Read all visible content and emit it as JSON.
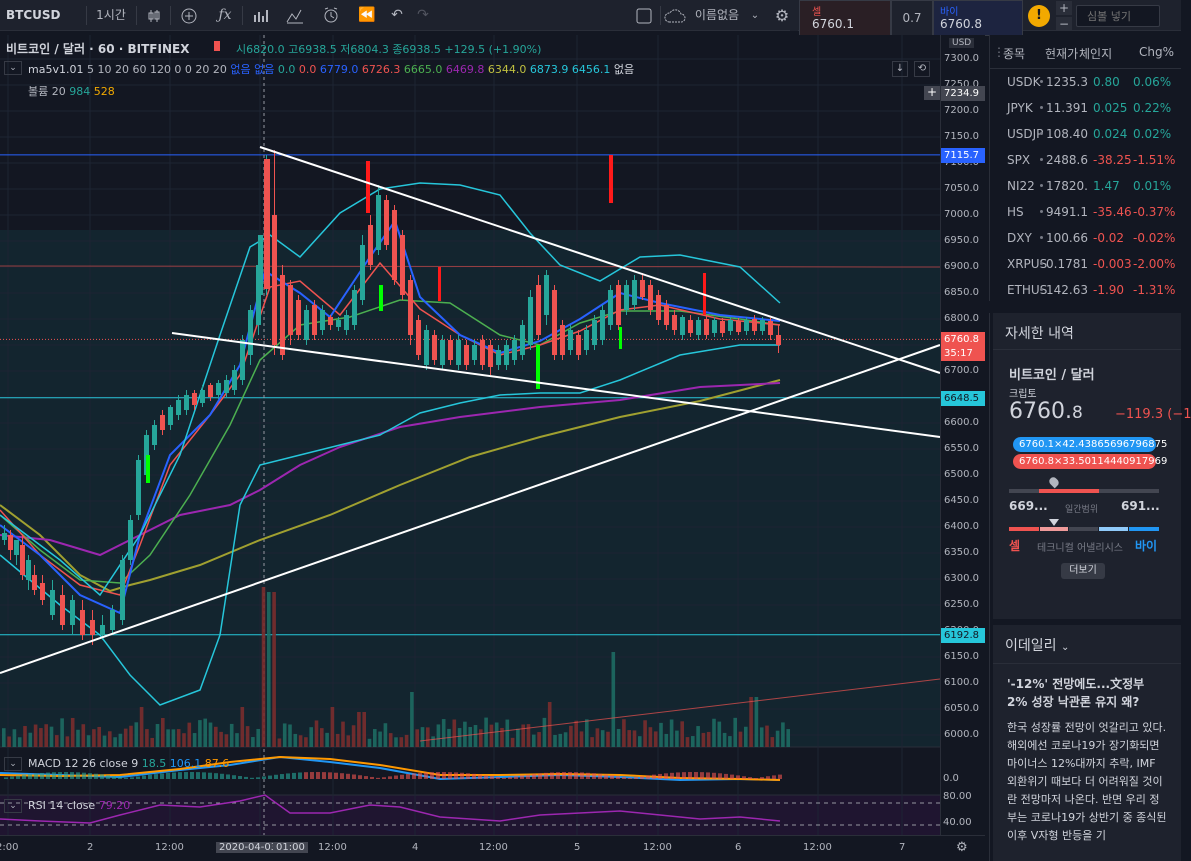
{
  "toolbar": {
    "symbol": "BTCUSD",
    "interval": "1시간",
    "layout_name": "이름없음",
    "sell_label": "셀",
    "sell_price": "6760.1",
    "spread": "0.7",
    "buy_label": "바이",
    "buy_price": "6760.8",
    "symbol_search_placeholder": "심볼 넣기"
  },
  "legend": {
    "title": "비트코인 / 달러 · 60 · BITFINEX",
    "ohlc": "시6820.0 고6938.5 저6804.3 종6938.5 +129.5 (+1.90%)",
    "ma_name": "ma5v1.01",
    "ma_params": "5 10 20 60 120 0 0 20 20",
    "ma_none1": "없음",
    "ma_none2": "없음",
    "ma_values": [
      {
        "text": "0.0",
        "color": "#26a69a"
      },
      {
        "text": "0.0",
        "color": "#ef5350"
      },
      {
        "text": "6779.0",
        "color": "#2962ff"
      },
      {
        "text": "6726.3",
        "color": "#ef5350"
      },
      {
        "text": "6665.0",
        "color": "#4caf50"
      },
      {
        "text": "6469.8",
        "color": "#9c27b0"
      },
      {
        "text": "6344.0",
        "color": "#c0c040"
      },
      {
        "text": "6873.9",
        "color": "#26c6da"
      },
      {
        "text": "6456.1",
        "color": "#26c6da"
      }
    ],
    "ma_tail": "없음",
    "volume_name": "볼륨 20",
    "volume_val1": "984",
    "volume_val2": "528"
  },
  "price_axis": {
    "currency": "USD",
    "ticks": [
      "7300.0",
      "7250.0",
      "7200.0",
      "7150.0",
      "7100.0",
      "7050.0",
      "7000.0",
      "6950.0",
      "6900.0",
      "6850.0",
      "6800.0",
      "6750.0",
      "6700.0",
      "6650.0",
      "6600.0",
      "6550.0",
      "6500.0",
      "6450.0",
      "6400.0",
      "6350.0",
      "6300.0",
      "6250.0",
      "6200.0",
      "6150.0",
      "6100.0",
      "6050.0",
      "6000.0"
    ],
    "tags": [
      {
        "text": "7234.9",
        "bg": "#434651"
      },
      {
        "text": "7115.7",
        "bg": "#2962ff"
      },
      {
        "text": "6760.8",
        "bg": "#ef5350"
      },
      {
        "text": "35:17",
        "bg": "#ef5350"
      },
      {
        "text": "6648.5",
        "bg": "#26c6da"
      },
      {
        "text": "6192.8",
        "bg": "#26c6da"
      }
    ]
  },
  "macd": {
    "label": "MACD 12 26 close 9",
    "v1": "18.5",
    "v2": "106.1",
    "v3": "87.6",
    "tick": "0.0"
  },
  "rsi": {
    "label": "RSI 14 close",
    "value": "79.20",
    "ticks": [
      "80.00",
      "40.00"
    ]
  },
  "time_axis": {
    "labels": [
      "2:00",
      "2",
      "12:00",
      "2020-04-03",
      "01:00",
      "12:00",
      "4",
      "12:00",
      "5",
      "12:00",
      "6",
      "12:00",
      "7"
    ]
  },
  "watchlist": {
    "headers": [
      "종목",
      "현재가",
      "체인지",
      "Chg%"
    ],
    "rows": [
      {
        "sym": "USDK",
        "price": "1235.3",
        "chg": "0.80",
        "pct": "0.06%",
        "dir": "pos"
      },
      {
        "sym": "JPYK",
        "price": "11.391",
        "chg": "0.025",
        "pct": "0.22%",
        "dir": "pos"
      },
      {
        "sym": "USDJP",
        "price": "108.40",
        "chg": "0.024",
        "pct": "0.02%",
        "dir": "pos"
      },
      {
        "sym": "SPX",
        "price": "2488.6",
        "chg": "-38.25",
        "pct": "-1.51%",
        "dir": "neg"
      },
      {
        "sym": "NI22",
        "price": "17820.",
        "chg": "1.47",
        "pct": "0.01%",
        "dir": "pos"
      },
      {
        "sym": "HS",
        "price": "9491.1",
        "chg": "-35.46",
        "pct": "-0.37%",
        "dir": "neg"
      },
      {
        "sym": "DXY",
        "price": "100.66",
        "chg": "-0.02",
        "pct": "-0.02%",
        "dir": "neg"
      },
      {
        "sym": "XRPUS",
        "price": "0.1781",
        "chg": "-0.003",
        "pct": "-2.00%",
        "dir": "neg"
      },
      {
        "sym": "ETHUS",
        "price": "142.63",
        "chg": "-1.90",
        "pct": "-1.31%",
        "dir": "neg"
      }
    ]
  },
  "details": {
    "header": "자세한 내역",
    "name": "비트코인 / 달러",
    "type": "크립토",
    "price_main": "6760.",
    "price_last": "8",
    "change": "−119.3 (−1",
    "bid": "6760.1×42.43865696796875",
    "ask": "6760.8×33.50114440917969",
    "range_low": "669...",
    "range_label": "일간범위",
    "range_high": "691...",
    "ta_sell": "셀",
    "ta_label": "테크니컬 어낼리시스",
    "ta_buy": "바이",
    "more_button": "더보기"
  },
  "news": {
    "source": "이데일리",
    "headline": "'-12%' 전망에도...文정부 2% 성장 낙관론 유지 왜?",
    "body": "한국 성장률 전망이 엇갈리고 있다. 해외에선 코로나19가 장기화되면 마이너스 12%대까지 추락, IMF 외환위기 때보다 더 어려워질 것이란 전망마저 나온다. 반면 우리 정부는 코로나19가 상반기 중 종식된 이후 V자형 반등을 기"
  },
  "colors": {
    "bg": "#131722",
    "up": "#26a69a",
    "down": "#ef5350",
    "ma5": "#2962ff",
    "ma10": "#ef5350",
    "ma20": "#4caf50",
    "ma60": "#9c27b0",
    "ma120": "#a0a030",
    "bb": "#26c6da"
  }
}
